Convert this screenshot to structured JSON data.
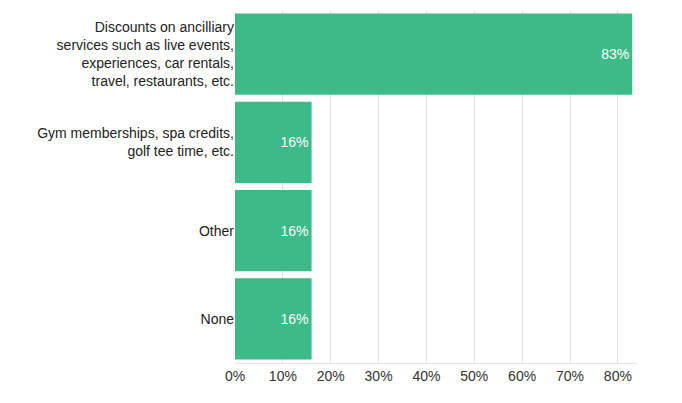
{
  "chart_data": {
    "type": "bar",
    "orientation": "horizontal",
    "categories": [
      "Discounts on ancilliary services such as live events, experiences, car rentals, travel, restaurants, etc.",
      "Gym memberships, spa credits, golf tee time, etc.",
      "Other",
      "None"
    ],
    "values": [
      83,
      16,
      16,
      16
    ],
    "value_labels": [
      "83%",
      "16%",
      "16%",
      "16%"
    ],
    "data_labels": true,
    "color": "#3dba87",
    "xlim": [
      0,
      84
    ],
    "xticks": [
      {
        "value": 0,
        "label": "0%"
      },
      {
        "value": 10,
        "label": "10%"
      },
      {
        "value": 20,
        "label": "20%"
      },
      {
        "value": 30,
        "label": "30%"
      },
      {
        "value": 40,
        "label": "40%"
      },
      {
        "value": 50,
        "label": "50%"
      },
      {
        "value": 60,
        "label": "60%"
      },
      {
        "value": 70,
        "label": "70%"
      },
      {
        "value": 80,
        "label": "80%"
      }
    ],
    "grid": true
  }
}
